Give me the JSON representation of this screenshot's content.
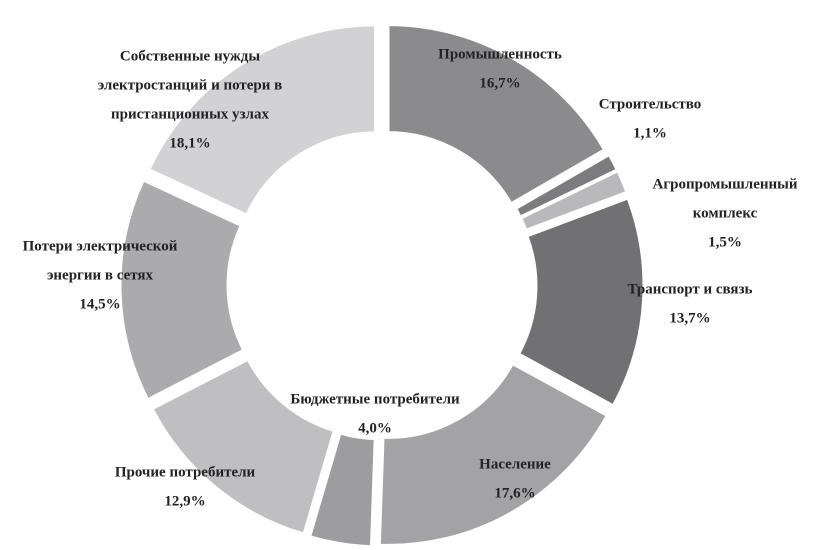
{
  "chart_data": {
    "type": "donut",
    "categories": [
      [
        "Промышленность"
      ],
      [
        "Строительство"
      ],
      [
        "Агропромышленный",
        "комплекс"
      ],
      [
        "Транспорт и связь"
      ],
      [
        "Население"
      ],
      [
        "Бюджетные потребители"
      ],
      [
        "Прочие потребители"
      ],
      [
        "Потери электрической",
        "энергии в сетях"
      ],
      [
        "Собственные нужды",
        "электростанций и потери в",
        "пристанционных узлах"
      ]
    ],
    "values": [
      16.7,
      1.1,
      1.5,
      13.7,
      17.6,
      4.0,
      12.9,
      14.5,
      18.1
    ],
    "value_labels": [
      "16,7%",
      "1,1%",
      "1,5%",
      "13,7%",
      "17,6%",
      "4,0%",
      "12,9%",
      "14,5%",
      "18,1%"
    ],
    "colors": [
      "#8b8b8d",
      "#7c7c7e",
      "#b9b9bb",
      "#717173",
      "#a3a3a5",
      "#9d9d9f",
      "#bfbfc1",
      "#ababad",
      "#d2d2d4"
    ]
  }
}
